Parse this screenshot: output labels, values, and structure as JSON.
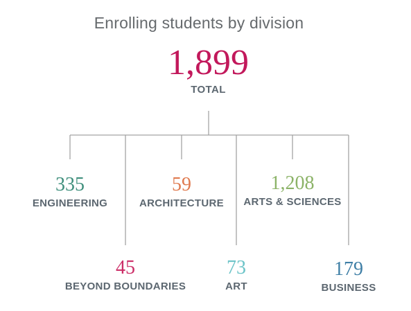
{
  "title": "Enrolling students by division",
  "total": {
    "value": "1,899",
    "label": "TOTAL",
    "color": "#c2185b"
  },
  "colors": {
    "connector": "#a3a3a3",
    "label": "#5c6770"
  },
  "divisions": [
    {
      "name": "ENGINEERING",
      "value": "335",
      "color": "#3f8f7c"
    },
    {
      "name": "BEYOND BOUNDARIES",
      "value": "45",
      "color": "#cc2d67"
    },
    {
      "name": "ARCHITECTURE",
      "value": "59",
      "color": "#e07a4f"
    },
    {
      "name": "ART",
      "value": "73",
      "color": "#6cc4c8"
    },
    {
      "name": "ARTS & SCIENCES",
      "value": "1,208",
      "color": "#8cb368"
    },
    {
      "name": "BUSINESS",
      "value": "179",
      "color": "#3f7fa6"
    }
  ]
}
